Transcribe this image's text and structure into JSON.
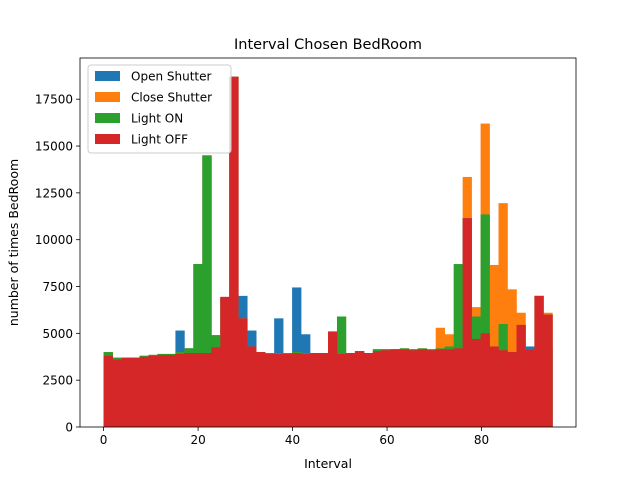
{
  "chart_data": {
    "type": "bar",
    "title": "Interval Chosen BedRoom",
    "xlabel": "Interval",
    "ylabel": "number of times BedRoom",
    "xlim": [
      -5,
      100
    ],
    "ylim": [
      0,
      19700
    ],
    "x_ticks": [
      0,
      20,
      40,
      60,
      80
    ],
    "x_tick_labels": [
      "0",
      "20",
      "40",
      "60",
      "80"
    ],
    "y_ticks": [
      0,
      2500,
      5000,
      7500,
      10000,
      12500,
      15000,
      17500
    ],
    "y_tick_labels": [
      "0",
      "2500",
      "5000",
      "7500",
      "10000",
      "12500",
      "15000",
      "17500"
    ],
    "grid": false,
    "legend_position": "upper left",
    "bin_start": 0,
    "bin_width": 1.9,
    "bins": 50,
    "series": [
      {
        "name": "Open Shutter",
        "color": "#1f77b4",
        "values": [
          4000,
          3700,
          3700,
          3700,
          3800,
          3850,
          3900,
          3900,
          5150,
          4200,
          8700,
          14500,
          4900,
          6900,
          18700,
          7000,
          5150,
          4000,
          3950,
          5800,
          3950,
          7450,
          4950,
          3950,
          3950,
          5100,
          3900,
          3950,
          4050,
          3950,
          4150,
          4150,
          4150,
          4150,
          4150,
          4150,
          4150,
          4150,
          4200,
          4200,
          4250,
          4300,
          4300,
          4300,
          4300,
          4300,
          4300,
          4300,
          4300,
          4300
        ]
      },
      {
        "name": "Close Shutter",
        "color": "#ff7f0e",
        "values": [
          4000,
          3700,
          3700,
          3700,
          3800,
          3850,
          3900,
          3900,
          4000,
          4200,
          8700,
          14500,
          4900,
          6900,
          18700,
          5800,
          4300,
          4000,
          3950,
          3950,
          3950,
          4000,
          3950,
          3950,
          3950,
          5100,
          3900,
          3950,
          4050,
          3950,
          4150,
          4150,
          4150,
          4200,
          4150,
          4200,
          4150,
          5300,
          4950,
          4250,
          13350,
          6400,
          16200,
          8650,
          11950,
          7350,
          6100,
          4150,
          7000,
          6100
        ]
      },
      {
        "name": "Light ON",
        "color": "#2ca02c",
        "values": [
          4000,
          3700,
          3700,
          3700,
          3800,
          3850,
          3900,
          3900,
          4000,
          4200,
          8700,
          14500,
          4900,
          6900,
          18700,
          5800,
          4300,
          4000,
          3950,
          3950,
          3950,
          4000,
          3950,
          3950,
          3950,
          5100,
          5900,
          3950,
          4050,
          3950,
          4150,
          4150,
          4150,
          4200,
          4150,
          4200,
          4150,
          4200,
          4300,
          8700,
          11150,
          5900,
          11350,
          4300,
          5500,
          4000,
          5450,
          4150,
          7000,
          6000
        ]
      },
      {
        "name": "Light OFF",
        "color": "#d62728",
        "values": [
          3800,
          3600,
          3700,
          3700,
          3750,
          3800,
          3850,
          3850,
          3900,
          3950,
          3950,
          3950,
          4250,
          6950,
          18700,
          5800,
          4300,
          4000,
          3900,
          3900,
          3900,
          3950,
          3900,
          3950,
          3950,
          5100,
          3900,
          3950,
          4050,
          3950,
          4050,
          4100,
          4150,
          4150,
          4100,
          4150,
          4100,
          4150,
          4150,
          4200,
          11150,
          4700,
          5000,
          4300,
          4100,
          4000,
          5450,
          4150,
          7000,
          6000
        ]
      }
    ]
  }
}
